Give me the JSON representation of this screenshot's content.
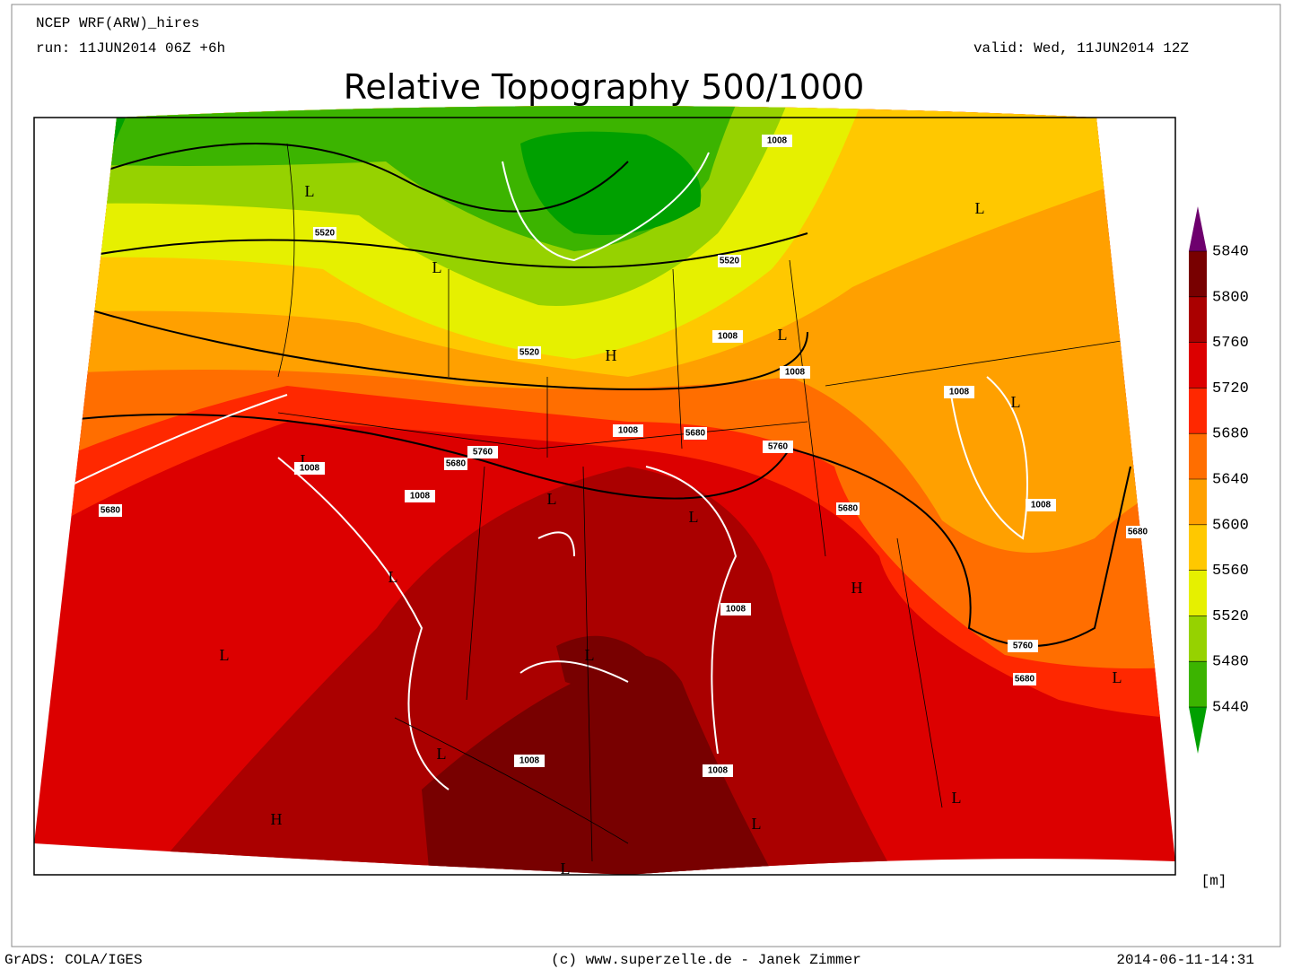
{
  "header": {
    "model": "NCEP WRF(ARW)_hires",
    "run": "run: 11JUN2014 06Z +6h",
    "valid": "valid: Wed, 11JUN2014 12Z",
    "title": "Relative Topography 500/1000"
  },
  "legend": {
    "levels": [
      5840,
      5800,
      5760,
      5720,
      5680,
      5640,
      5600,
      5560,
      5520,
      5480,
      5440
    ],
    "colors": [
      "#6e006e",
      "#780000",
      "#aa0000",
      "#dc0000",
      "#ff2800",
      "#ff6e00",
      "#ffa000",
      "#ffc800",
      "#e6f000",
      "#96d200",
      "#3cb400",
      "#00a000"
    ],
    "unit": "[m]"
  },
  "pressure_centers": [
    "L",
    "L",
    "H",
    "L",
    "L",
    "L",
    "L",
    "L",
    "L",
    "L",
    "H",
    "L",
    "L",
    "L",
    "H",
    "L",
    "L",
    "L",
    "L"
  ],
  "contour_labels": [
    5520,
    5520,
    5520,
    1008,
    1008,
    1008,
    1008,
    5760,
    5760,
    1008,
    5680,
    5680,
    1008,
    1008,
    5680,
    5680,
    1008,
    5680,
    1008,
    5760,
    5680,
    1008,
    1008
  ],
  "footer": {
    "left": "GrADS: COLA/IGES",
    "center": "(c) www.superzelle.de - Janek Zimmer",
    "right": "2014-06-11-14:31"
  }
}
